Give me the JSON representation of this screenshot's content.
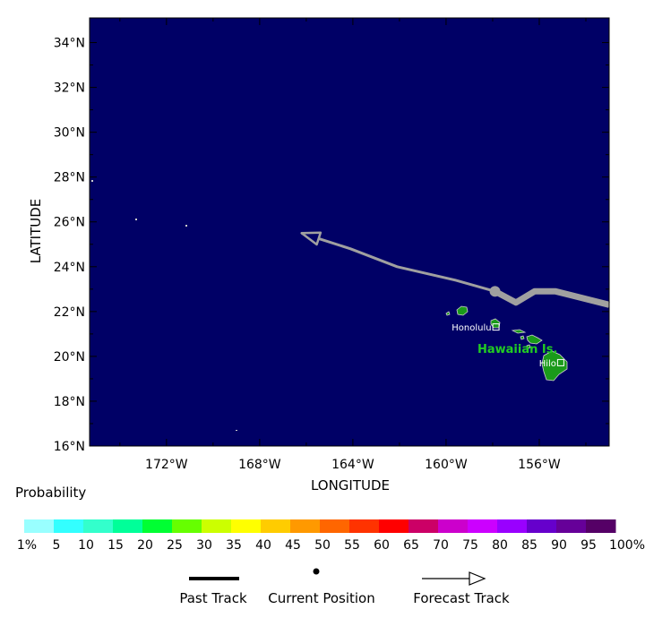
{
  "map": {
    "ocean_color": "#000066",
    "land_color": "#1a9a1a",
    "track_color": "#a0a0a0",
    "lon_ticks": [
      "172°W",
      "168°W",
      "164°W",
      "160°W",
      "156°W"
    ],
    "lat_ticks": [
      "34°N",
      "32°N",
      "30°N",
      "28°N",
      "26°N",
      "24°N",
      "22°N",
      "20°N",
      "18°N",
      "16°N"
    ],
    "xlabel": "LONGITUDE",
    "ylabel": "LATITUDE",
    "region_label": "Hawaiian Is.",
    "places": [
      {
        "name": "Honolulu",
        "lon": -157.86,
        "lat": 21.31
      },
      {
        "name": "Hilo",
        "lon": -155.08,
        "lat": 19.72
      }
    ],
    "track": {
      "past": [
        [
          -153.0,
          22.3
        ],
        [
          -155.3,
          22.9
        ],
        [
          -156.2,
          22.9
        ],
        [
          -157.0,
          22.4
        ],
        [
          -157.9,
          22.9
        ]
      ],
      "current": [
        -157.9,
        22.9
      ],
      "forecast": [
        [
          -157.9,
          22.9
        ],
        [
          -159.6,
          23.4
        ],
        [
          -162.1,
          24.0
        ],
        [
          -164.1,
          24.8
        ],
        [
          -166.2,
          25.5
        ]
      ]
    }
  },
  "legend": {
    "probability_title": "Probability",
    "scale": [
      {
        "label": "1%",
        "color": "#99ffff"
      },
      {
        "label": "5",
        "color": "#33ffff"
      },
      {
        "label": "10",
        "color": "#33ffcc"
      },
      {
        "label": "15",
        "color": "#00ff99"
      },
      {
        "label": "20",
        "color": "#00ff33"
      },
      {
        "label": "25",
        "color": "#66ff00"
      },
      {
        "label": "30",
        "color": "#ccff00"
      },
      {
        "label": "35",
        "color": "#ffff00"
      },
      {
        "label": "40",
        "color": "#ffcc00"
      },
      {
        "label": "45",
        "color": "#ff9900"
      },
      {
        "label": "50",
        "color": "#ff6600"
      },
      {
        "label": "55",
        "color": "#ff3300"
      },
      {
        "label": "60",
        "color": "#ff0000"
      },
      {
        "label": "65",
        "color": "#cc0066"
      },
      {
        "label": "70",
        "color": "#cc00cc"
      },
      {
        "label": "75",
        "color": "#cc00ff"
      },
      {
        "label": "80",
        "color": "#9900ff"
      },
      {
        "label": "85",
        "color": "#6600cc"
      },
      {
        "label": "90",
        "color": "#660099"
      },
      {
        "label": "95",
        "color": "#550066"
      }
    ],
    "scale_end_label": "100%",
    "past_track_label": "Past Track",
    "current_position_label": "Current Position",
    "forecast_track_label": "Forecast Track"
  }
}
